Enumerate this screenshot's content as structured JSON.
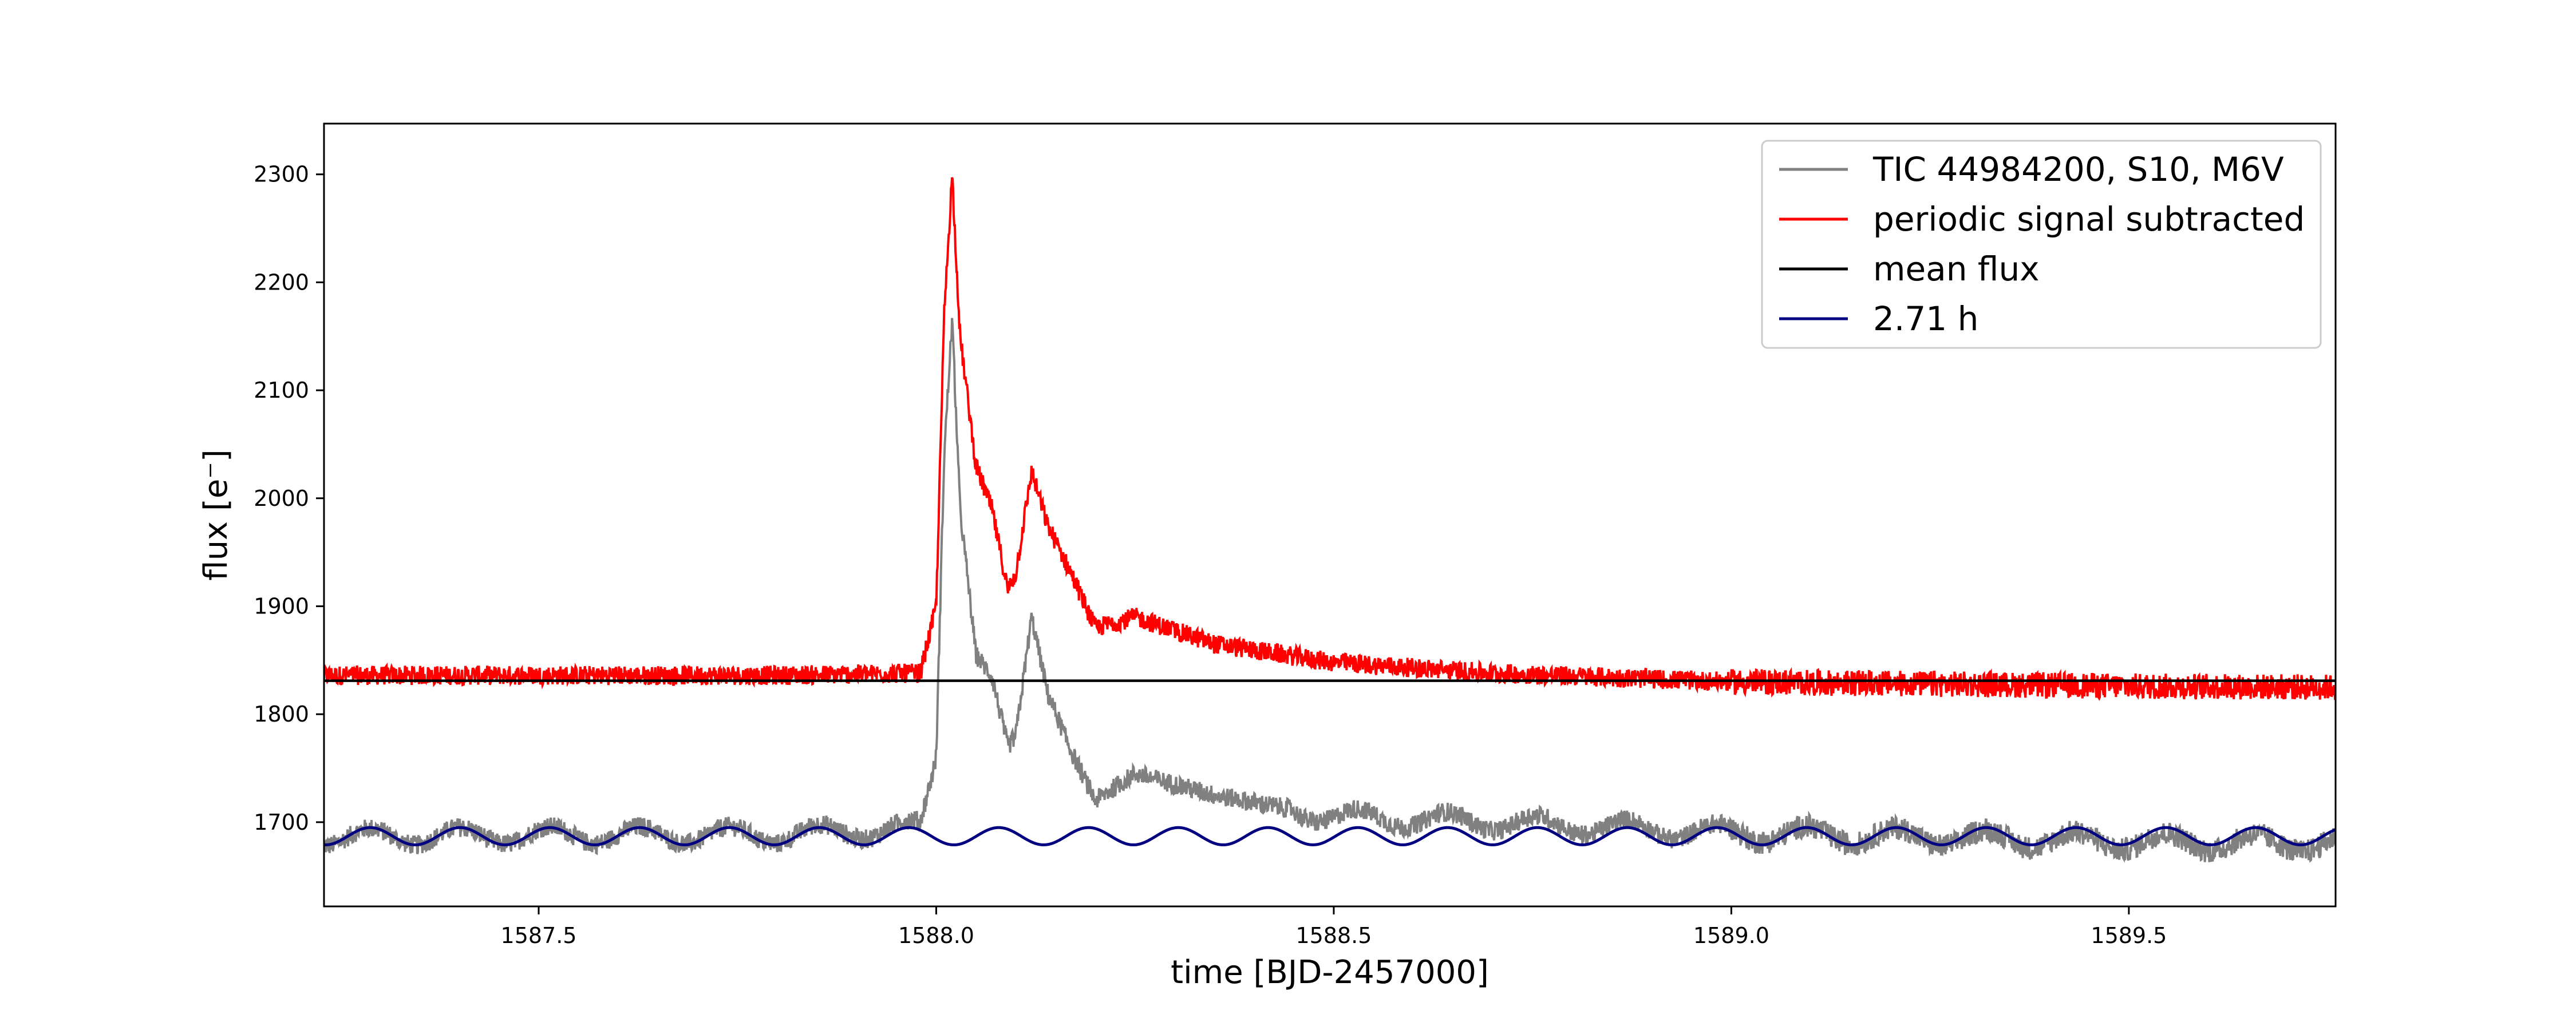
{
  "chart_data": {
    "type": "line",
    "xlabel": "time [BJD-2457000]",
    "ylabel": "flux [e⁻]",
    "xlim": [
      1587.23,
      1589.76
    ],
    "ylim": [
      1622,
      2347
    ],
    "x_ticks": [
      1587.5,
      1588.0,
      1588.5,
      1589.0,
      1589.5
    ],
    "x_tick_labels": [
      "1587.5",
      "1588.0",
      "1588.5",
      "1589.0",
      "1589.5"
    ],
    "y_ticks": [
      1700,
      1800,
      1900,
      2000,
      2100,
      2200,
      2300
    ],
    "y_tick_labels": [
      "1700",
      "1800",
      "1900",
      "2000",
      "2100",
      "2200",
      "2300"
    ],
    "grid": false,
    "legend_position": "top-right",
    "series": [
      {
        "name": "TIC 44984200, S10, M6V",
        "color": "#808080",
        "description_points": {
          "x": [
            1587.23,
            1587.5,
            1587.8,
            1587.98,
            1588.0,
            1588.01,
            1588.02,
            1588.03,
            1588.05,
            1588.07,
            1588.09,
            1588.1,
            1588.12,
            1588.14,
            1588.17,
            1588.2,
            1588.25,
            1588.35,
            1588.5,
            1588.7,
            1589.0,
            1589.5,
            1589.76
          ],
          "y": [
            1686,
            1688,
            1688,
            1695,
            1760,
            2040,
            2165,
            1990,
            1855,
            1835,
            1770,
            1780,
            1890,
            1820,
            1765,
            1720,
            1745,
            1725,
            1705,
            1700,
            1690,
            1682,
            1680
          ]
        }
      },
      {
        "name": "periodic signal subtracted",
        "color": "#ff0000",
        "description_points": {
          "x": [
            1587.23,
            1587.5,
            1587.8,
            1587.98,
            1588.0,
            1588.01,
            1588.02,
            1588.03,
            1588.05,
            1588.07,
            1588.09,
            1588.1,
            1588.12,
            1588.14,
            1588.17,
            1588.2,
            1588.25,
            1588.35,
            1588.5,
            1588.7,
            1589.0,
            1589.5,
            1589.76
          ],
          "y": [
            1836,
            1836,
            1836,
            1838,
            1900,
            2170,
            2300,
            2150,
            2030,
            1990,
            1915,
            1930,
            2025,
            1975,
            1930,
            1880,
            1890,
            1865,
            1848,
            1838,
            1830,
            1826,
            1825
          ]
        }
      },
      {
        "name": "mean flux",
        "color": "#000000",
        "x": [
          1587.23,
          1589.76
        ],
        "y": [
          1831,
          1831
        ]
      },
      {
        "name": "2.71 h",
        "color": "#000080",
        "model": {
          "offset": 1687,
          "amplitude": 8,
          "period_hours": 2.71
        }
      }
    ]
  }
}
